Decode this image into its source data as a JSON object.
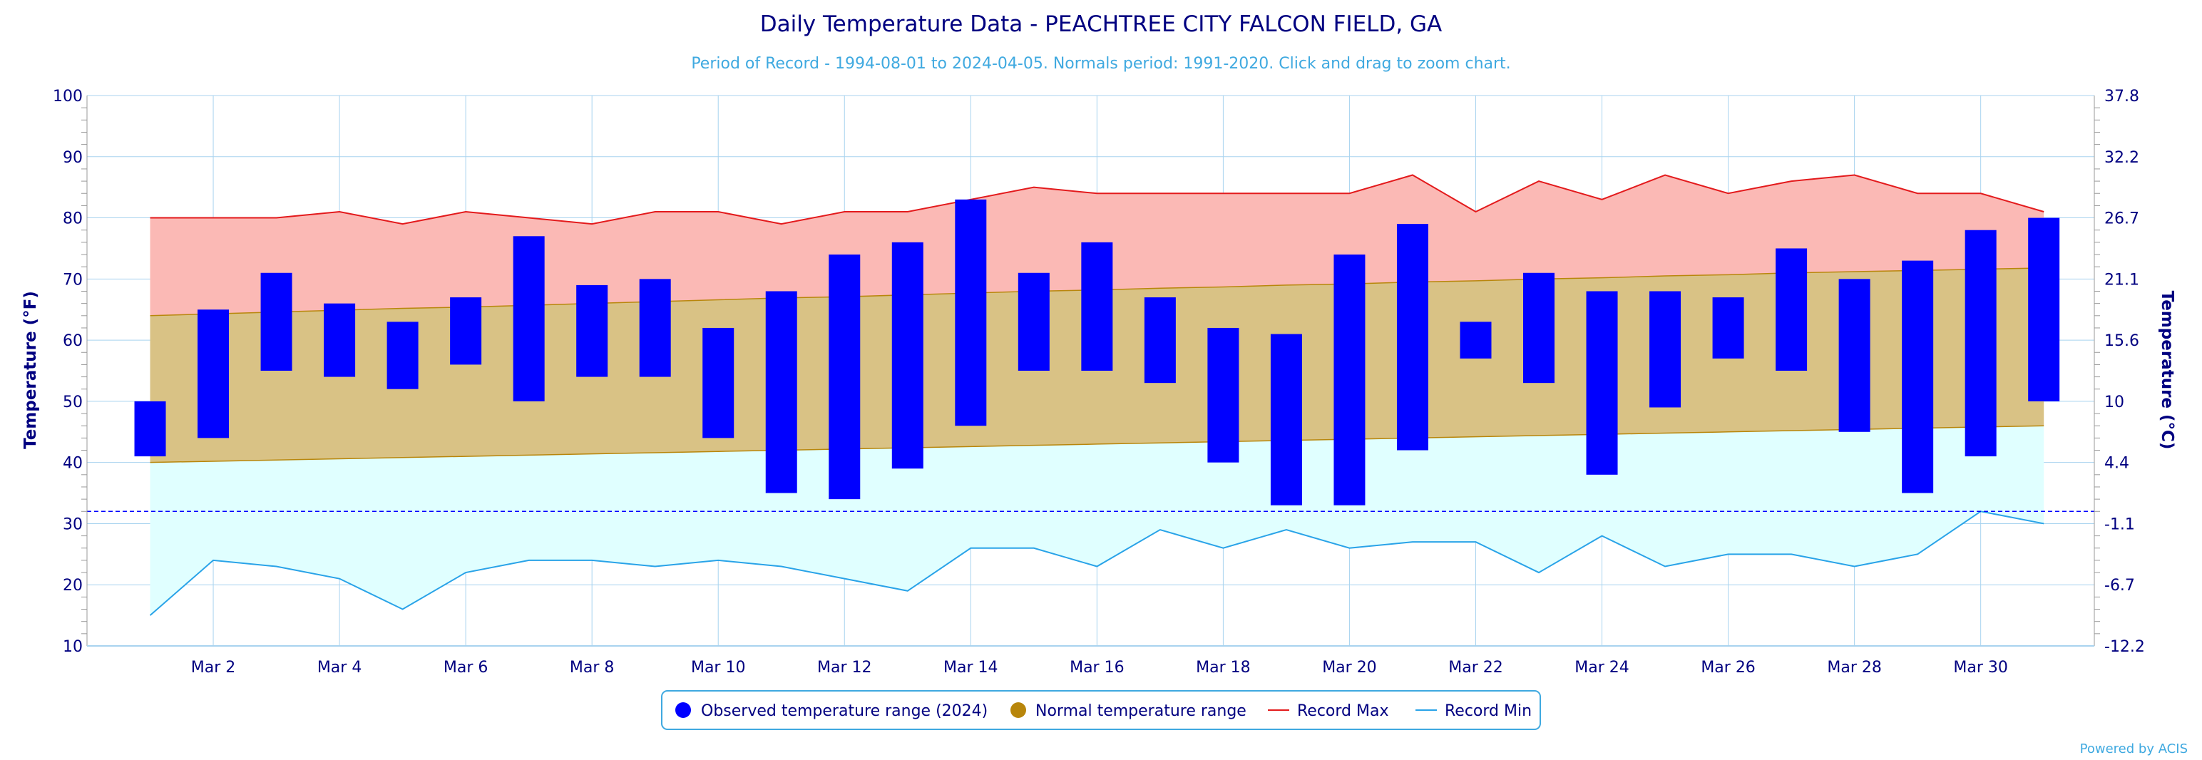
{
  "chart_data": {
    "type": "bar",
    "title": "Daily Temperature Data - PEACHTREE CITY FALCON FIELD, GA",
    "subtitle": "Period of Record - 1994-08-01 to 2024-04-05. Normals period: 1991-2020. Click and drag to zoom chart.",
    "ylabel": "Temperature (°F)",
    "ylabel_right": "Temperature (°C)",
    "credit": "Powered by ACIS",
    "ylim": [
      10,
      100
    ],
    "yticks": [
      10,
      20,
      30,
      40,
      50,
      60,
      70,
      80,
      90,
      100
    ],
    "yticks_right": [
      "-12.2",
      "-6.7",
      "-1.1",
      "4.4",
      "10",
      "15.6",
      "21.1",
      "26.7",
      "32.2",
      "37.8"
    ],
    "xlim": [
      0,
      31.8
    ],
    "xtick_days": [
      2,
      4,
      6,
      8,
      10,
      12,
      14,
      16,
      18,
      20,
      22,
      24,
      26,
      28,
      30
    ],
    "xtick_labels": [
      "Mar 2",
      "Mar 4",
      "Mar 6",
      "Mar 8",
      "Mar 10",
      "Mar 12",
      "Mar 14",
      "Mar 16",
      "Mar 18",
      "Mar 20",
      "Mar 22",
      "Mar 24",
      "Mar 26",
      "Mar 28",
      "Mar 30"
    ],
    "days": [
      1,
      2,
      3,
      4,
      5,
      6,
      7,
      8,
      9,
      10,
      11,
      12,
      13,
      14,
      15,
      16,
      17,
      18,
      19,
      20,
      21,
      22,
      23,
      24,
      25,
      26,
      27,
      28,
      29,
      30,
      31
    ],
    "observed_max": [
      50,
      65,
      71,
      66,
      63,
      67,
      77,
      69,
      70,
      62,
      68,
      74,
      76,
      83,
      71,
      76,
      67,
      62,
      61,
      74,
      79,
      63,
      71,
      68,
      68,
      67,
      75,
      70,
      73,
      78,
      80
    ],
    "observed_min": [
      41,
      44,
      55,
      54,
      52,
      56,
      50,
      54,
      54,
      44,
      35,
      34,
      39,
      46,
      55,
      55,
      53,
      40,
      33,
      33,
      42,
      57,
      53,
      38,
      49,
      57,
      55,
      45,
      35,
      41,
      50
    ],
    "normal_max": [
      64,
      64.3,
      64.6,
      64.9,
      65.2,
      65.4,
      65.7,
      66,
      66.3,
      66.6,
      66.9,
      67.1,
      67.4,
      67.7,
      68,
      68.2,
      68.5,
      68.7,
      69,
      69.2,
      69.5,
      69.7,
      70,
      70.2,
      70.5,
      70.7,
      71,
      71.2,
      71.4,
      71.6,
      71.8
    ],
    "normal_min": [
      40,
      40.2,
      40.4,
      40.6,
      40.8,
      41,
      41.2,
      41.4,
      41.6,
      41.8,
      42,
      42.2,
      42.4,
      42.6,
      42.8,
      43,
      43.2,
      43.4,
      43.6,
      43.8,
      44,
      44.2,
      44.4,
      44.6,
      44.8,
      45,
      45.2,
      45.4,
      45.6,
      45.8,
      46
    ],
    "record_max": [
      80,
      80,
      80,
      81,
      79,
      81,
      80,
      79,
      81,
      81,
      79,
      81,
      81,
      83,
      85,
      84,
      84,
      84,
      84,
      84,
      87,
      81,
      86,
      83,
      87,
      84,
      86,
      87,
      84,
      84,
      81
    ],
    "record_min": [
      15,
      24,
      23,
      21,
      16,
      22,
      24,
      24,
      23,
      24,
      23,
      21,
      19,
      26,
      26,
      23,
      29,
      26,
      29,
      26,
      27,
      27,
      22,
      28,
      23,
      25,
      25,
      23,
      25,
      32,
      30
    ],
    "freezing_line": 32,
    "legend": [
      {
        "label": "Observed temperature range (2024)",
        "color": "#0000ff",
        "marker": "circle"
      },
      {
        "label": "Normal temperature range",
        "color": "#b8860b",
        "marker": "circle"
      },
      {
        "label": "Record Max",
        "color": "#e31a1c",
        "marker": "line"
      },
      {
        "label": "Record Min",
        "color": "#29a3e8",
        "marker": "line"
      }
    ],
    "legend_position": "bottom-center",
    "grid": true,
    "colors": {
      "observed": "#0000ff",
      "normal_fill": "#d9c285",
      "normal_line": "#b8860b",
      "record_max_fill": "#fbb9b5",
      "record_max_line": "#e31a1c",
      "record_min_fill": "#e0ffff",
      "record_min_line": "#29a3e8",
      "grid": "#a8d3ef",
      "text": "#000080",
      "subtitle": "#3fa9e0"
    }
  }
}
